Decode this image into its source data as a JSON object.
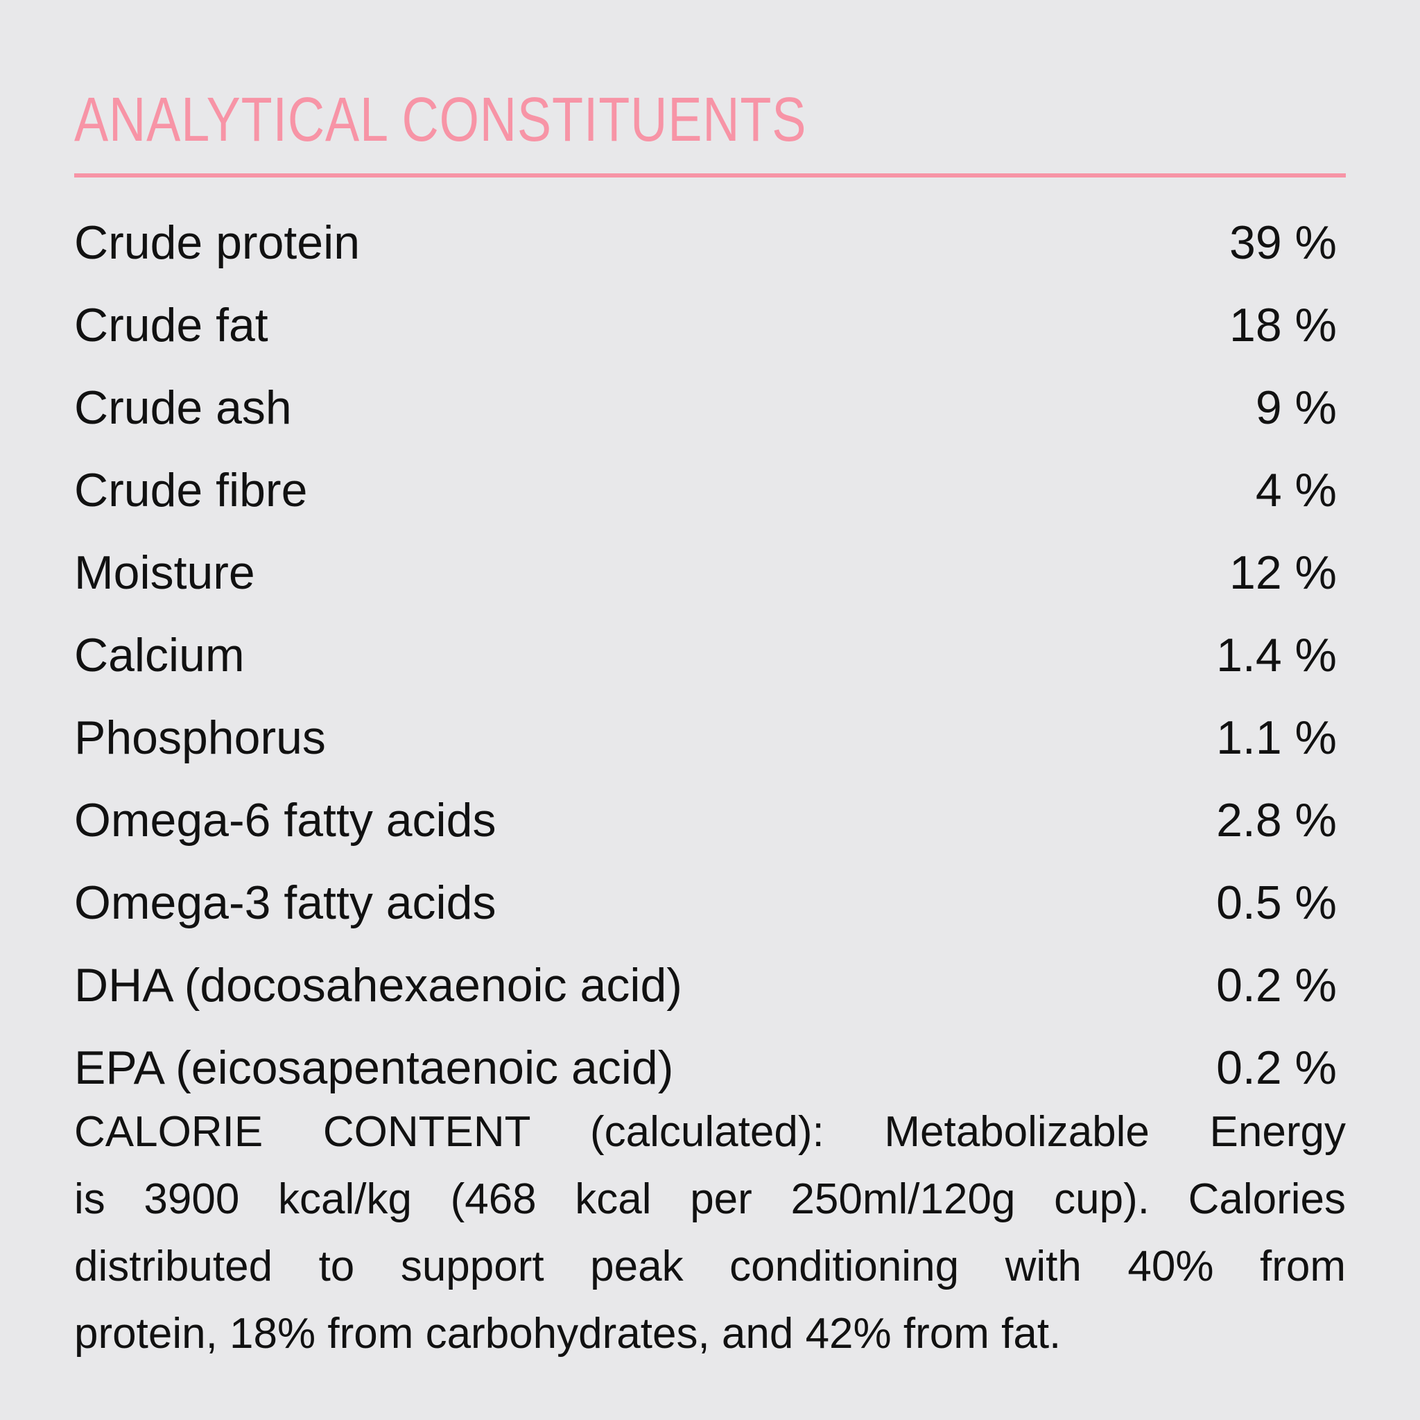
{
  "title": "ANALYTICAL CONSTITUENTS",
  "accent_color": "#f794a6",
  "constituents": [
    {
      "name": "Crude protein",
      "value": "39 %"
    },
    {
      "name": "Crude fat",
      "value": "18 %"
    },
    {
      "name": "Crude ash",
      "value": "9 %"
    },
    {
      "name": "Crude fibre",
      "value": "4 %"
    },
    {
      "name": "Moisture",
      "value": "12 %"
    },
    {
      "name": "Calcium",
      "value": "1.4 %"
    },
    {
      "name": "Phosphorus",
      "value": "1.1 %"
    },
    {
      "name": "Omega-6 fatty acids",
      "value": "2.8 %"
    },
    {
      "name": "Omega-3 fatty acids",
      "value": "0.5 %"
    },
    {
      "name": "DHA (docosahexaenoic acid)",
      "value": "0.2 %"
    },
    {
      "name": "EPA (eicosapentaenoic acid)",
      "value": "0.2 %"
    }
  ],
  "calorie_lines": [
    "CALORIE CONTENT (calculated): Metabolizable Energy",
    "is 3900 kcal/kg (468 kcal per 250ml/120g cup). Calories",
    "distributed to support peak conditioning with 40% from",
    "protein, 18% from carbohydrates, and 42% from fat."
  ]
}
